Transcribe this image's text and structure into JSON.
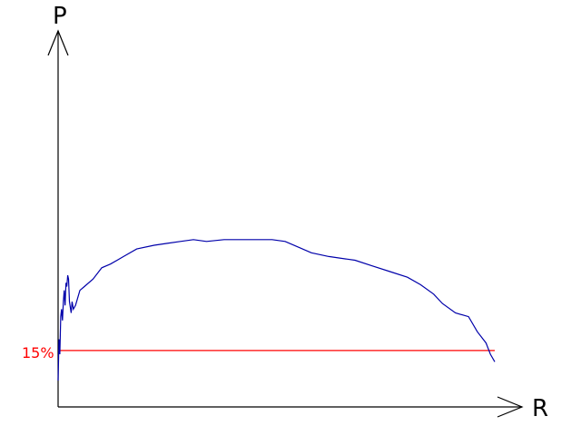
{
  "chart_data": {
    "type": "line",
    "xlabel": "R",
    "ylabel": "P",
    "xlim": [
      0,
      1
    ],
    "ylim": [
      0,
      1
    ],
    "grid": false,
    "x_ticks_shown": false,
    "y_ticks_shown": false,
    "series": [
      {
        "color": "#0000aa",
        "points": [
          [
            0.0,
            0.07
          ],
          [
            0.002,
            0.18
          ],
          [
            0.004,
            0.14
          ],
          [
            0.006,
            0.24
          ],
          [
            0.008,
            0.26
          ],
          [
            0.01,
            0.23
          ],
          [
            0.012,
            0.28
          ],
          [
            0.014,
            0.31
          ],
          [
            0.016,
            0.27
          ],
          [
            0.018,
            0.33
          ],
          [
            0.02,
            0.32
          ],
          [
            0.022,
            0.35
          ],
          [
            0.024,
            0.34
          ],
          [
            0.026,
            0.28
          ],
          [
            0.03,
            0.25
          ],
          [
            0.032,
            0.28
          ],
          [
            0.035,
            0.26
          ],
          [
            0.04,
            0.27
          ],
          [
            0.045,
            0.29
          ],
          [
            0.05,
            0.31
          ],
          [
            0.06,
            0.32
          ],
          [
            0.08,
            0.34
          ],
          [
            0.1,
            0.37
          ],
          [
            0.12,
            0.38
          ],
          [
            0.15,
            0.4
          ],
          [
            0.18,
            0.42
          ],
          [
            0.22,
            0.43
          ],
          [
            0.25,
            0.435
          ],
          [
            0.28,
            0.44
          ],
          [
            0.31,
            0.445
          ],
          [
            0.34,
            0.44
          ],
          [
            0.38,
            0.445
          ],
          [
            0.42,
            0.445
          ],
          [
            0.46,
            0.445
          ],
          [
            0.49,
            0.445
          ],
          [
            0.52,
            0.44
          ],
          [
            0.55,
            0.425
          ],
          [
            0.58,
            0.41
          ],
          [
            0.62,
            0.4
          ],
          [
            0.68,
            0.39
          ],
          [
            0.72,
            0.375
          ],
          [
            0.76,
            0.36
          ],
          [
            0.8,
            0.345
          ],
          [
            0.83,
            0.325
          ],
          [
            0.86,
            0.3
          ],
          [
            0.88,
            0.275
          ],
          [
            0.91,
            0.25
          ],
          [
            0.94,
            0.24
          ],
          [
            0.96,
            0.2
          ],
          [
            0.98,
            0.17
          ],
          [
            0.99,
            0.14
          ],
          [
            1.0,
            0.12
          ]
        ]
      }
    ],
    "reference_line": {
      "y": 0.15,
      "label": "15%",
      "color": "#ff0000"
    }
  }
}
